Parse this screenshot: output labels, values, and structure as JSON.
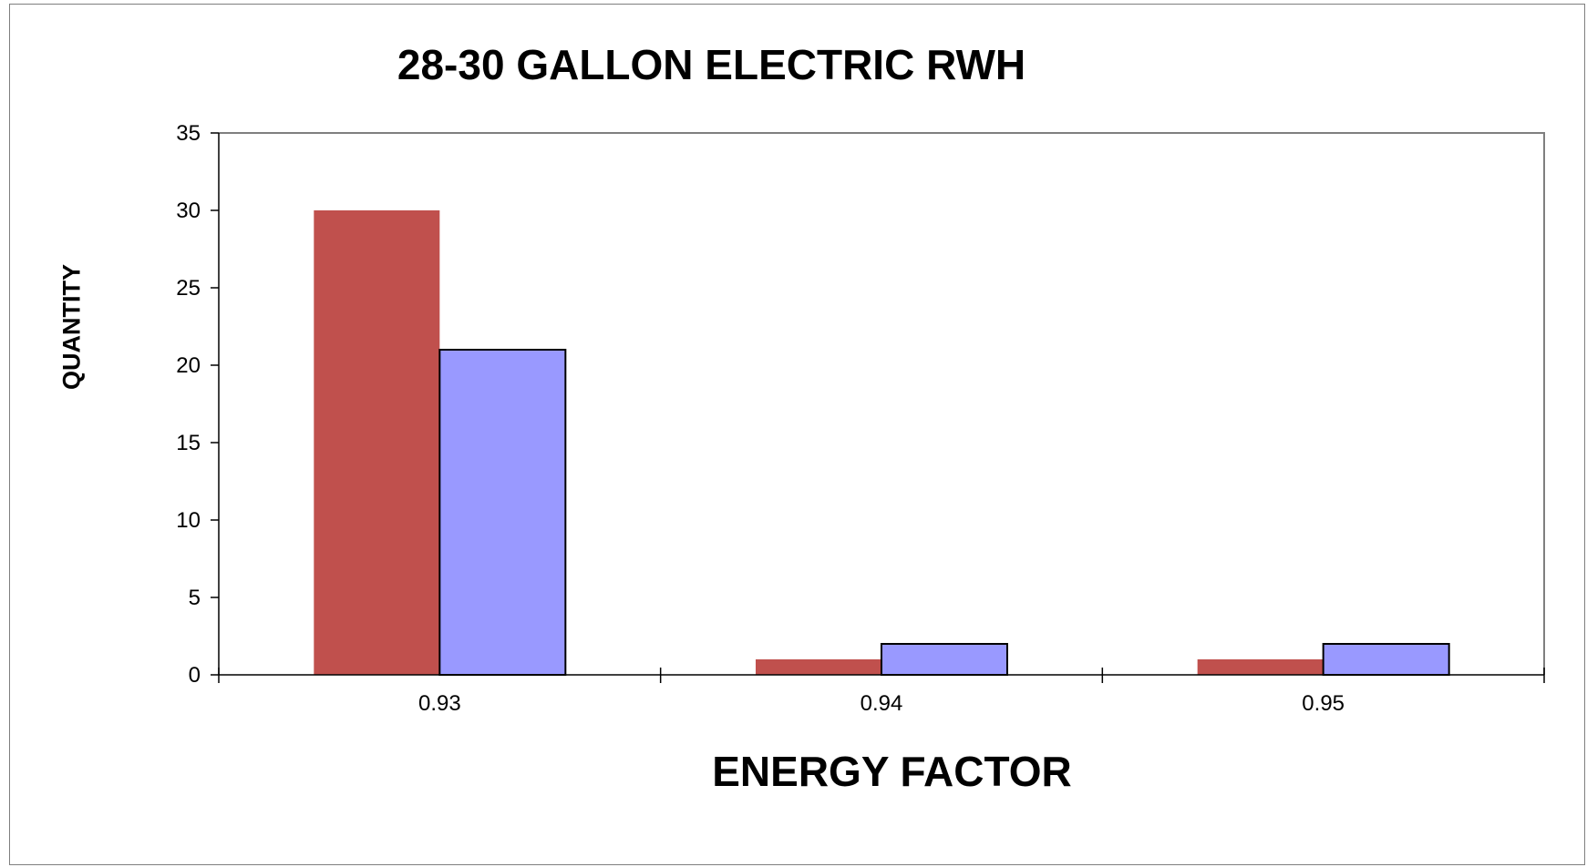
{
  "chart_data": {
    "type": "bar",
    "title": "28-30 GALLON ELECTRIC RWH",
    "xlabel": "ENERGY FACTOR",
    "ylabel": "QUANTITY",
    "categories": [
      "0.93",
      "0.94",
      "0.95"
    ],
    "series": [
      {
        "values": [
          30,
          1,
          1
        ],
        "color": "#c0504d"
      },
      {
        "values": [
          21,
          2,
          2
        ],
        "color": "#9999ff"
      }
    ],
    "ylim": [
      0,
      35
    ],
    "yticks": [
      "0",
      "5",
      "10",
      "15",
      "20",
      "25",
      "30",
      "35"
    ],
    "grid": false,
    "legend": "none"
  }
}
